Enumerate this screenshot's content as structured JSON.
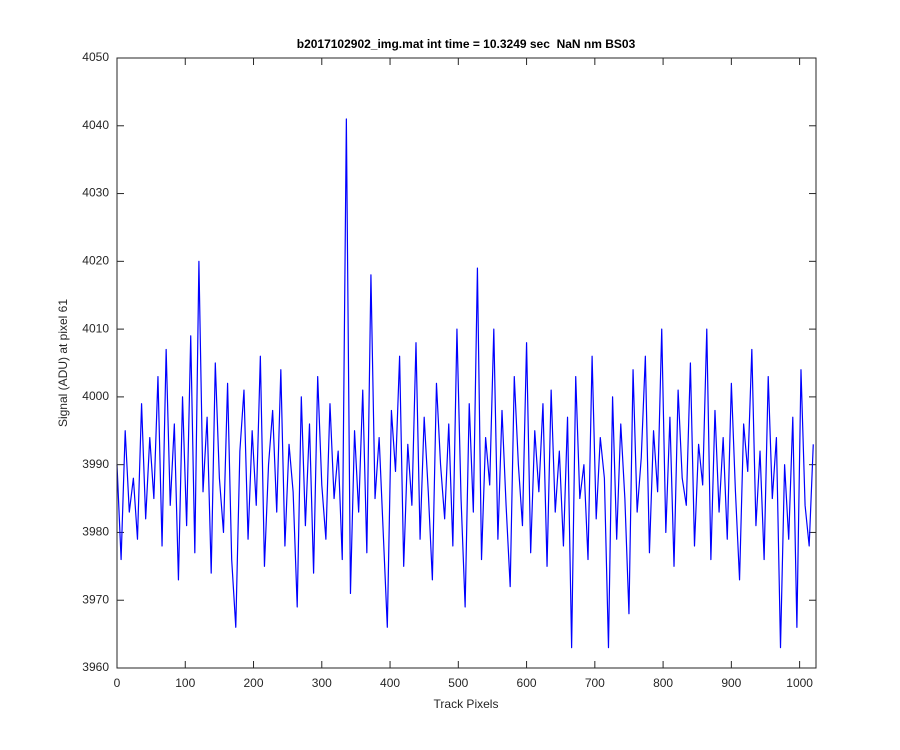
{
  "chart_data": {
    "type": "line",
    "title": "b2017102902_img.mat int time = 10.3249 sec  NaN nm BS03",
    "x_label": "Track Pixels",
    "y_label": "Signal (ADU) at pixel 61",
    "x": [
      0,
      6,
      12,
      18,
      24,
      30,
      36,
      42,
      48,
      54,
      60,
      66,
      72,
      78,
      84,
      90,
      96,
      102,
      108,
      114,
      120,
      126,
      132,
      138,
      144,
      150,
      156,
      162,
      168,
      174,
      180,
      186,
      192,
      198,
      204,
      210,
      216,
      222,
      228,
      234,
      240,
      246,
      252,
      258,
      264,
      270,
      276,
      282,
      288,
      294,
      300,
      306,
      312,
      318,
      324,
      330,
      336,
      342,
      348,
      354,
      360,
      366,
      372,
      378,
      384,
      390,
      396,
      402,
      408,
      414,
      420,
      426,
      432,
      438,
      444,
      450,
      456,
      462,
      468,
      474,
      480,
      486,
      492,
      498,
      504,
      510,
      516,
      522,
      528,
      534,
      540,
      546,
      552,
      558,
      564,
      570,
      576,
      582,
      588,
      594,
      600,
      606,
      612,
      618,
      624,
      630,
      636,
      642,
      648,
      654,
      660,
      666,
      672,
      678,
      684,
      690,
      696,
      702,
      708,
      714,
      720,
      726,
      732,
      738,
      744,
      750,
      756,
      762,
      768,
      774,
      780,
      786,
      792,
      798,
      804,
      810,
      816,
      822,
      828,
      834,
      840,
      846,
      852,
      858,
      864,
      870,
      876,
      882,
      888,
      894,
      900,
      906,
      912,
      918,
      924,
      930,
      936,
      942,
      948,
      954,
      960,
      966,
      972,
      978,
      984,
      990,
      996,
      1002,
      1008,
      1014,
      1020
    ],
    "series": [
      {
        "name": "signal",
        "color": "#0000ff",
        "values": [
          3990,
          3976,
          3995,
          3983,
          3988,
          3979,
          3999,
          3982,
          3994,
          3985,
          4003,
          3978,
          4007,
          3984,
          3996,
          3973,
          4000,
          3981,
          4009,
          3977,
          4020,
          3986,
          3997,
          3974,
          4005,
          3988,
          3980,
          4002,
          3976,
          3966,
          3992,
          4001,
          3979,
          3995,
          3984,
          4006,
          3975,
          3990,
          3998,
          3983,
          4004,
          3978,
          3993,
          3986,
          3969,
          4000,
          3981,
          3996,
          3974,
          4003,
          3987,
          3979,
          3999,
          3985,
          3992,
          3976,
          4041,
          3971,
          3995,
          3983,
          4001,
          3977,
          4018,
          3985,
          3994,
          3980,
          3966,
          3998,
          3989,
          4006,
          3975,
          3993,
          3984,
          4008,
          3979,
          3997,
          3986,
          3973,
          4002,
          3990,
          3982,
          3996,
          3978,
          4010,
          3985,
          3969,
          3999,
          3983,
          4019,
          3976,
          3994,
          3987,
          4010,
          3979,
          3998,
          3984,
          3972,
          4003,
          3990,
          3981,
          4008,
          3977,
          3995,
          3986,
          3999,
          3975,
          4001,
          3983,
          3992,
          3978,
          3997,
          3963,
          4003,
          3985,
          3990,
          3976,
          4006,
          3982,
          3994,
          3988,
          3963,
          4000,
          3979,
          3996,
          3985,
          3968,
          4004,
          3983,
          3991,
          4006,
          3977,
          3995,
          3986,
          4010,
          3980,
          3997,
          3975,
          4001,
          3988,
          3984,
          4005,
          3978,
          3993,
          3987,
          4010,
          3976,
          3998,
          3983,
          3994,
          3979,
          4002,
          3986,
          3973,
          3996,
          3989,
          4007,
          3981,
          3992,
          3976,
          4003,
          3985,
          3994,
          3963,
          3990,
          3979,
          3997,
          3966,
          4004,
          3984,
          3978,
          3993
        ]
      }
    ],
    "xlim": [
      0,
      1024
    ],
    "ylim": [
      3960,
      4050
    ],
    "xticks": [
      0,
      100,
      200,
      300,
      400,
      500,
      600,
      700,
      800,
      900,
      1000
    ],
    "yticks": [
      3960,
      3970,
      3980,
      3990,
      4000,
      4010,
      4020,
      4030,
      4040,
      4050
    ]
  }
}
